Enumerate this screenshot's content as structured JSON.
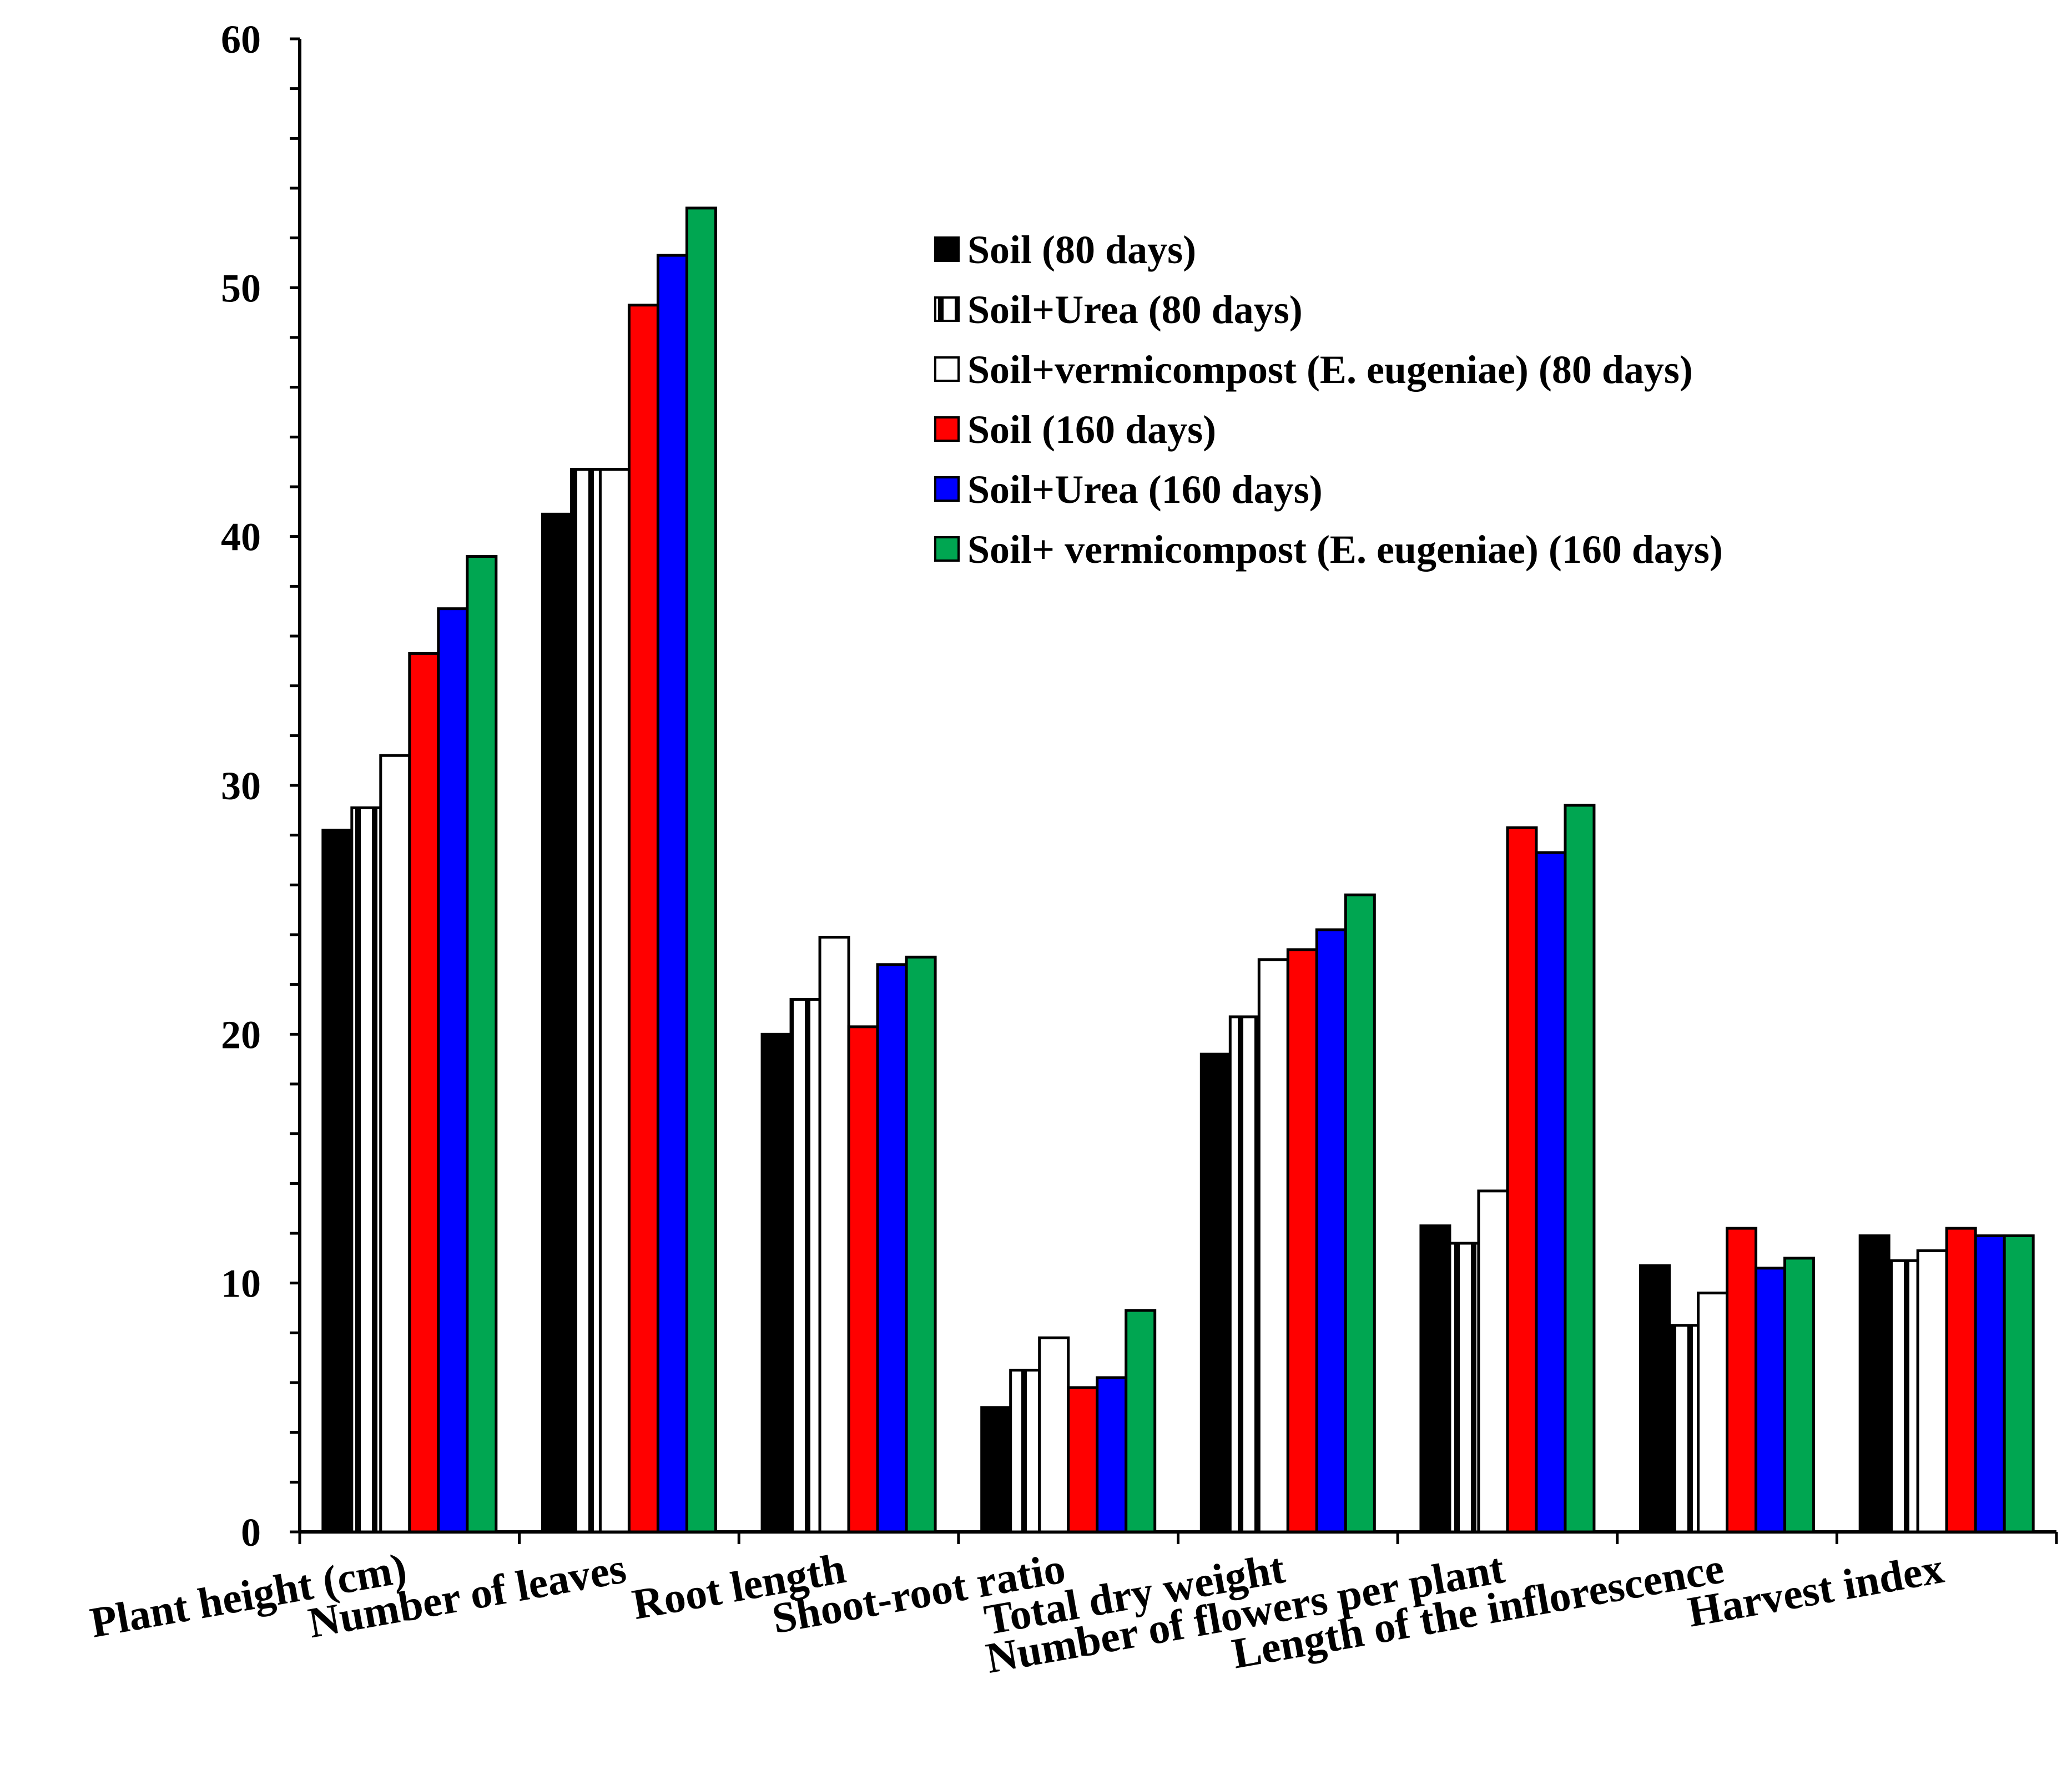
{
  "chart_data": {
    "type": "bar",
    "title": "",
    "xlabel": "",
    "ylabel": "",
    "ylim": [
      0,
      60
    ],
    "yticks": [
      0,
      10,
      20,
      30,
      40,
      50,
      60
    ],
    "ytick_labels": [
      "0",
      "10",
      "20",
      "30",
      "40",
      "50",
      "60"
    ],
    "grid": false,
    "legend_position": "top-right",
    "categories": [
      "Plant height (cm)",
      "Number of leaves",
      "Root length",
      "Shoot-root ratio",
      "Total dry weight",
      "Number of flowers per plant",
      "Length of the  inflorescence",
      "Harvest index"
    ],
    "series": [
      {
        "name": "Soil (80 days)",
        "color": "#000000",
        "pattern": "solid",
        "values": [
          28.2,
          40.9,
          20.0,
          5.0,
          19.2,
          12.3,
          10.7,
          11.9
        ]
      },
      {
        "name": "Soil+Urea (80 days)",
        "color": "#ffffff",
        "pattern": "vertical-stripe",
        "values": [
          29.1,
          42.7,
          21.4,
          6.5,
          20.7,
          11.6,
          8.3,
          10.9
        ]
      },
      {
        "name": "Soil+vermicompost (E. eugeniae) (80 days)",
        "color": "#ffffff",
        "pattern": "solid",
        "values": [
          31.2,
          42.7,
          23.9,
          7.8,
          23.0,
          13.7,
          9.6,
          11.3
        ]
      },
      {
        "name": "Soil (160 days)",
        "color": "#ff0000",
        "pattern": "solid",
        "values": [
          35.3,
          49.3,
          20.3,
          5.8,
          23.4,
          28.3,
          12.2,
          12.2
        ]
      },
      {
        "name": "Soil+Urea (160 days)",
        "color": "#0000ff",
        "pattern": "solid",
        "values": [
          37.1,
          51.3,
          22.8,
          6.2,
          24.2,
          27.3,
          10.6,
          11.9
        ]
      },
      {
        "name": "Soil+ vermicompost (E. eugeniae) (160 days)",
        "color": "#00a651",
        "pattern": "solid",
        "values": [
          39.2,
          53.2,
          23.1,
          8.9,
          25.6,
          29.2,
          11.0,
          11.9
        ]
      }
    ]
  }
}
